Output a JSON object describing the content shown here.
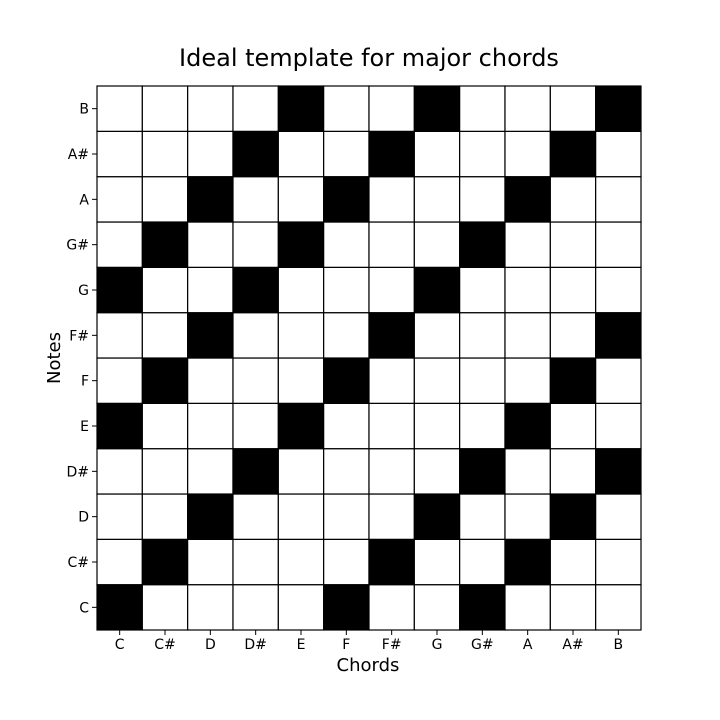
{
  "chart_data": {
    "type": "heatmap",
    "title": "Ideal template for major chords",
    "xlabel": "Chords",
    "ylabel": "Notes",
    "x_categories": [
      "C",
      "C#",
      "D",
      "D#",
      "E",
      "F",
      "F#",
      "G",
      "G#",
      "A",
      "A#",
      "B"
    ],
    "y_categories": [
      "C",
      "C#",
      "D",
      "D#",
      "E",
      "F",
      "F#",
      "G",
      "G#",
      "A",
      "A#",
      "B"
    ],
    "values": [
      [
        1,
        0,
        0,
        0,
        0,
        1,
        0,
        0,
        1,
        0,
        0,
        0
      ],
      [
        0,
        1,
        0,
        0,
        0,
        0,
        1,
        0,
        0,
        1,
        0,
        0
      ],
      [
        0,
        0,
        1,
        0,
        0,
        0,
        0,
        1,
        0,
        0,
        1,
        0
      ],
      [
        0,
        0,
        0,
        1,
        0,
        0,
        0,
        0,
        1,
        0,
        0,
        1
      ],
      [
        1,
        0,
        0,
        0,
        1,
        0,
        0,
        0,
        0,
        1,
        0,
        0
      ],
      [
        0,
        1,
        0,
        0,
        0,
        1,
        0,
        0,
        0,
        0,
        1,
        0
      ],
      [
        0,
        0,
        1,
        0,
        0,
        0,
        1,
        0,
        0,
        0,
        0,
        1
      ],
      [
        1,
        0,
        0,
        1,
        0,
        0,
        0,
        1,
        0,
        0,
        0,
        0
      ],
      [
        0,
        1,
        0,
        0,
        1,
        0,
        0,
        0,
        1,
        0,
        0,
        0
      ],
      [
        0,
        0,
        1,
        0,
        0,
        1,
        0,
        0,
        0,
        1,
        0,
        0
      ],
      [
        0,
        0,
        0,
        1,
        0,
        0,
        1,
        0,
        0,
        0,
        1,
        0
      ],
      [
        0,
        0,
        0,
        0,
        1,
        0,
        0,
        1,
        0,
        0,
        0,
        1
      ]
    ],
    "colors": {
      "on": "#000000",
      "off": "#ffffff",
      "grid": "#000000"
    }
  }
}
